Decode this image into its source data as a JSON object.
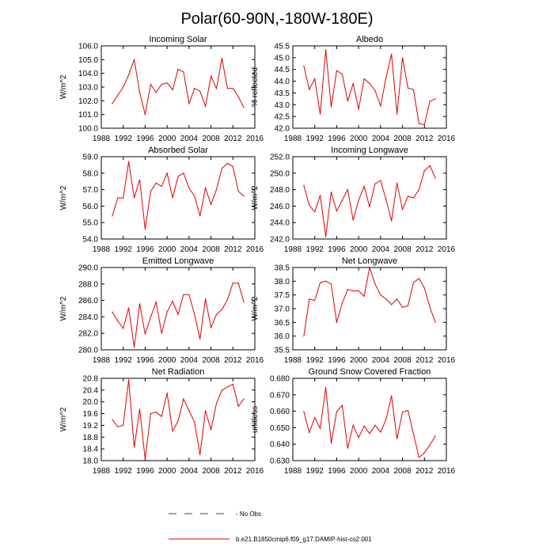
{
  "figure": {
    "title": "Polar(60-90N,-180W-180E)",
    "legend": [
      {
        "label": "- No Obs",
        "color": "#3a3aa0",
        "style": "dashed"
      },
      {
        "label": "b.e21.B1850cmip6.f09_g17.DAMIP-hist-co2.001",
        "color": "#e00000",
        "style": "solid"
      }
    ]
  },
  "chart_data": [
    {
      "type": "line",
      "title": "Incoming Solar",
      "ylabel": "W/m^2",
      "xlim": [
        1988,
        2016
      ],
      "xticks": [
        1988,
        1992,
        1996,
        2000,
        2004,
        2008,
        2012,
        2016
      ],
      "ylim": [
        100.0,
        106.0
      ],
      "yticks": [
        100.0,
        101.0,
        102.0,
        103.0,
        104.0,
        105.0,
        106.0
      ],
      "ydec": 1,
      "color": "#e00000",
      "x": [
        1990,
        1991,
        1992,
        1993,
        1994,
        1995,
        1996,
        1997,
        1998,
        1999,
        2000,
        2001,
        2002,
        2003,
        2004,
        2005,
        2006,
        2007,
        2008,
        2009,
        2010,
        2011,
        2012,
        2013,
        2014
      ],
      "y": [
        101.8,
        102.4,
        103.0,
        103.9,
        105.0,
        102.6,
        101.0,
        103.2,
        102.6,
        103.2,
        103.3,
        102.8,
        104.3,
        104.1,
        101.8,
        102.9,
        102.7,
        101.6,
        103.8,
        102.9,
        105.1,
        102.9,
        102.9,
        102.3,
        101.5
      ]
    },
    {
      "type": "line",
      "title": "Albedo",
      "ylabel": "% reflected",
      "xlim": [
        1988,
        2016
      ],
      "xticks": [
        1988,
        1992,
        1996,
        2000,
        2004,
        2008,
        2012,
        2016
      ],
      "ylim": [
        42.0,
        45.5
      ],
      "yticks": [
        42.0,
        42.5,
        43.0,
        43.5,
        44.0,
        44.5,
        45.0,
        45.5
      ],
      "ydec": 1,
      "color": "#e00000",
      "x": [
        1990,
        1991,
        1992,
        1993,
        1994,
        1995,
        1996,
        1997,
        1998,
        1999,
        2000,
        2001,
        2002,
        2003,
        2004,
        2005,
        2006,
        2007,
        2008,
        2009,
        2010,
        2011,
        2012,
        2013,
        2014
      ],
      "y": [
        44.65,
        43.65,
        44.1,
        42.6,
        45.35,
        42.9,
        44.45,
        44.3,
        43.15,
        43.9,
        42.8,
        44.1,
        43.9,
        43.6,
        42.95,
        44.15,
        45.15,
        42.6,
        45.0,
        43.7,
        43.65,
        42.2,
        42.15,
        43.15,
        43.25
      ]
    },
    {
      "type": "line",
      "title": "Absorbed Solar",
      "ylabel": "W/m^2",
      "xlim": [
        1988,
        2016
      ],
      "xticks": [
        1988,
        1992,
        1996,
        2000,
        2004,
        2008,
        2012,
        2016
      ],
      "ylim": [
        54.0,
        59.0
      ],
      "yticks": [
        54.0,
        55.0,
        56.0,
        57.0,
        58.0,
        59.0
      ],
      "ydec": 1,
      "color": "#e00000",
      "x": [
        1990,
        1991,
        1992,
        1993,
        1994,
        1995,
        1996,
        1997,
        1998,
        1999,
        2000,
        2001,
        2002,
        2003,
        2004,
        2005,
        2006,
        2007,
        2008,
        2009,
        2010,
        2011,
        2012,
        2013,
        2014
      ],
      "y": [
        55.4,
        56.5,
        56.5,
        58.7,
        56.5,
        57.6,
        54.6,
        56.9,
        57.4,
        57.2,
        58.0,
        56.5,
        57.8,
        58.0,
        57.1,
        56.6,
        55.4,
        57.1,
        56.1,
        57.0,
        58.3,
        58.6,
        58.4,
        56.9,
        56.6
      ]
    },
    {
      "type": "line",
      "title": "Incoming Longwave",
      "ylabel": "W/m^2",
      "xlim": [
        1988,
        2016
      ],
      "xticks": [
        1988,
        1992,
        1996,
        2000,
        2004,
        2008,
        2012,
        2016
      ],
      "ylim": [
        242.0,
        252.0
      ],
      "yticks": [
        242.0,
        244.0,
        246.0,
        248.0,
        250.0,
        252.0
      ],
      "ydec": 1,
      "color": "#e00000",
      "x": [
        1990,
        1991,
        1992,
        1993,
        1994,
        1995,
        1996,
        1997,
        1998,
        1999,
        2000,
        2001,
        2002,
        2003,
        2004,
        2005,
        2006,
        2007,
        2008,
        2009,
        2010,
        2011,
        2012,
        2013,
        2014
      ],
      "y": [
        248.5,
        246.1,
        245.3,
        247.3,
        242.3,
        247.7,
        245.4,
        246.7,
        248.0,
        244.3,
        246.7,
        248.4,
        245.9,
        248.7,
        249.1,
        246.8,
        244.2,
        248.8,
        245.6,
        247.2,
        247.0,
        248.0,
        250.3,
        250.9,
        249.4
      ]
    },
    {
      "type": "line",
      "title": "Emitted Longwave",
      "ylabel": "W/m^2",
      "xlim": [
        1988,
        2016
      ],
      "xticks": [
        1988,
        1992,
        1996,
        2000,
        2004,
        2008,
        2012,
        2016
      ],
      "ylim": [
        280.0,
        290.0
      ],
      "yticks": [
        280.0,
        282.0,
        284.0,
        286.0,
        288.0,
        290.0
      ],
      "ydec": 1,
      "color": "#e00000",
      "x": [
        1990,
        1991,
        1992,
        1993,
        1994,
        1995,
        1996,
        1997,
        1998,
        1999,
        2000,
        2001,
        2002,
        2003,
        2004,
        2005,
        2006,
        2007,
        2008,
        2009,
        2010,
        2011,
        2012,
        2013,
        2014
      ],
      "y": [
        284.6,
        283.5,
        282.6,
        285.1,
        280.3,
        285.6,
        281.9,
        284.0,
        285.8,
        282.0,
        284.6,
        285.9,
        284.3,
        286.7,
        286.7,
        284.3,
        281.3,
        286.2,
        282.7,
        284.3,
        284.9,
        286.1,
        288.1,
        288.1,
        285.8
      ]
    },
    {
      "type": "line",
      "title": "Net Longwave",
      "ylabel": "W/m^2",
      "xlim": [
        1988,
        2016
      ],
      "xticks": [
        1988,
        1992,
        1996,
        2000,
        2004,
        2008,
        2012,
        2016
      ],
      "ylim": [
        35.5,
        38.5
      ],
      "yticks": [
        35.5,
        36.0,
        36.5,
        37.0,
        37.5,
        38.0,
        38.5
      ],
      "ydec": 1,
      "color": "#e00000",
      "x": [
        1990,
        1991,
        1992,
        1993,
        1994,
        1995,
        1996,
        1997,
        1998,
        1999,
        2000,
        2001,
        2002,
        2003,
        2004,
        2005,
        2006,
        2007,
        2008,
        2009,
        2010,
        2011,
        2012,
        2013,
        2014
      ],
      "y": [
        36.0,
        37.35,
        37.3,
        37.95,
        38.0,
        37.9,
        36.5,
        37.2,
        37.7,
        37.65,
        37.65,
        37.45,
        38.5,
        37.9,
        37.5,
        37.35,
        37.15,
        37.35,
        37.05,
        37.1,
        37.95,
        38.1,
        37.75,
        37.05,
        36.5
      ]
    },
    {
      "type": "line",
      "title": "Net Radiation",
      "ylabel": "W/m^2",
      "xlim": [
        1988,
        2016
      ],
      "xticks": [
        1988,
        1992,
        1996,
        2000,
        2004,
        2008,
        2012,
        2016
      ],
      "ylim": [
        18.0,
        20.8
      ],
      "yticks": [
        18.0,
        18.4,
        18.8,
        19.2,
        19.6,
        20.0,
        20.4,
        20.8
      ],
      "ydec": 1,
      "color": "#e00000",
      "x": [
        1990,
        1991,
        1992,
        1993,
        1994,
        1995,
        1996,
        1997,
        1998,
        1999,
        2000,
        2001,
        2002,
        2003,
        2004,
        2005,
        2006,
        2007,
        2008,
        2009,
        2010,
        2011,
        2012,
        2013,
        2014
      ],
      "y": [
        19.4,
        19.15,
        19.2,
        20.75,
        18.45,
        19.75,
        18.05,
        19.6,
        19.65,
        19.5,
        20.3,
        19.0,
        19.35,
        20.1,
        19.7,
        19.3,
        18.2,
        19.7,
        19.05,
        19.95,
        20.4,
        20.5,
        20.6,
        19.85,
        20.1
      ]
    },
    {
      "type": "line",
      "title": "Ground Snow Covered Fraction",
      "ylabel": "unitless",
      "xlim": [
        1988,
        2016
      ],
      "xticks": [
        1988,
        1992,
        1996,
        2000,
        2004,
        2008,
        2012,
        2016
      ],
      "ylim": [
        0.63,
        0.68
      ],
      "yticks": [
        0.63,
        0.64,
        0.65,
        0.66,
        0.67,
        0.68
      ],
      "ydec": 3,
      "color": "#e00000",
      "x": [
        1990,
        1991,
        1992,
        1993,
        1994,
        1995,
        1996,
        1997,
        1998,
        1999,
        2000,
        2001,
        2002,
        2003,
        2004,
        2005,
        2006,
        2007,
        2008,
        2009,
        2010,
        2011,
        2012,
        2013,
        2014
      ],
      "y": [
        0.6598,
        0.647,
        0.6562,
        0.6496,
        0.6744,
        0.6405,
        0.6598,
        0.6635,
        0.6375,
        0.6515,
        0.644,
        0.651,
        0.6465,
        0.6515,
        0.6473,
        0.655,
        0.6694,
        0.6432,
        0.6595,
        0.6605,
        0.6463,
        0.6319,
        0.6348,
        0.6395,
        0.645
      ]
    }
  ]
}
